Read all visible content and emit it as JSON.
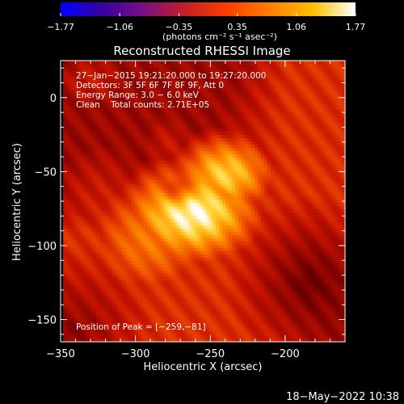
{
  "chart_data": {
    "type": "heatmap",
    "title": "Reconstructed RHESSI Image",
    "xlabel": "Heliocentric X (arcsec)",
    "ylabel": "Heliocentric Y (arcsec)",
    "xlim": [
      -350,
      -160
    ],
    "ylim": [
      -165,
      25
    ],
    "x_ticks": [
      -350,
      -300,
      -250,
      -200
    ],
    "x_tick_labels": [
      "−350",
      "−300",
      "−250",
      "−200"
    ],
    "y_ticks": [
      0,
      -50,
      -100,
      -150
    ],
    "y_tick_labels": [
      "0",
      "−50",
      "−100",
      "−150"
    ],
    "colorbar": {
      "range": [
        -1.77,
        1.77
      ],
      "ticks": [
        -1.77,
        -1.06,
        -0.35,
        0.35,
        1.06,
        1.77
      ],
      "tick_labels": [
        "−1.77",
        "−1.06",
        "−0.35",
        "0.35",
        "1.06",
        "1.77"
      ],
      "unit_label": "(photons cm⁻² s⁻¹ asec⁻²)",
      "colors": [
        "#0000ff",
        "#3a00a0",
        "#7a1080",
        "#c82020",
        "#ff4000",
        "#ff8000",
        "#ffc000",
        "#ffffff"
      ]
    },
    "annotations": [
      "27−Jan−2015 19:21:20.000 to 19:27:20.000",
      "Detectors: 3F 5F 6F 7F 8F 9F, Att 0",
      "Energy Range: 3.0 − 6.0 keV",
      "Clean    Total counts: 2.71E+05"
    ],
    "peak_label": "Position of Peak = [−259,−81]",
    "peak": [
      -259,
      -81
    ],
    "sources": [
      {
        "x": -262,
        "y": -78,
        "sx": 40,
        "sy": 30,
        "amp": 1.0
      },
      {
        "x": -240,
        "y": -52,
        "sx": 30,
        "sy": 24,
        "amp": 0.9
      },
      {
        "x": -290,
        "y": -95,
        "sx": 42,
        "sy": 40,
        "amp": 0.72
      },
      {
        "x": -278,
        "y": -32,
        "sx": 22,
        "sy": 28,
        "amp": 0.45
      },
      {
        "x": -322,
        "y": -76,
        "sx": 44,
        "sy": 55,
        "amp": 0.48
      },
      {
        "x": -180,
        "y": -45,
        "sx": 28,
        "sy": 22,
        "amp": 0.42
      },
      {
        "x": -330,
        "y": 12,
        "sx": 30,
        "sy": 24,
        "amp": 0.45
      }
    ],
    "background": 0.52
  },
  "footer": {
    "date": "18−May−2022 10:38"
  }
}
